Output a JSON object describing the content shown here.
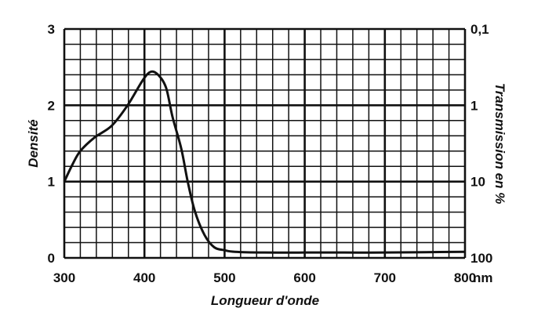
{
  "chart_data": {
    "type": "line",
    "title": "",
    "xlabel": "Longueur d'onde",
    "ylabel": "Densité",
    "y2label": "Transmission en %",
    "x_unit": "nm",
    "xlim": [
      300,
      800
    ],
    "ylim": [
      0,
      3
    ],
    "x_ticks": [
      "300",
      "400",
      "500",
      "600",
      "700",
      "800"
    ],
    "y_ticks": [
      "0",
      "1",
      "2",
      "3"
    ],
    "y2_ticks": [
      "100",
      "10",
      "1",
      "0,1"
    ],
    "grid": true,
    "x_minor_step": 20,
    "y_minor_step": 0.2,
    "line_color": "#111111",
    "series": [
      {
        "x": [
          300,
          310,
          320,
          338,
          359,
          379,
          398,
          408,
          417,
          427,
          435,
          446,
          454,
          463,
          475,
          487,
          500,
          513,
          550,
          600,
          650,
          700,
          750,
          800
        ],
        "y": [
          1.0,
          1.22,
          1.4,
          1.58,
          1.73,
          2.0,
          2.33,
          2.44,
          2.4,
          2.23,
          1.85,
          1.43,
          1.0,
          0.61,
          0.3,
          0.14,
          0.1,
          0.08,
          0.07,
          0.07,
          0.07,
          0.07,
          0.075,
          0.08
        ]
      }
    ]
  }
}
